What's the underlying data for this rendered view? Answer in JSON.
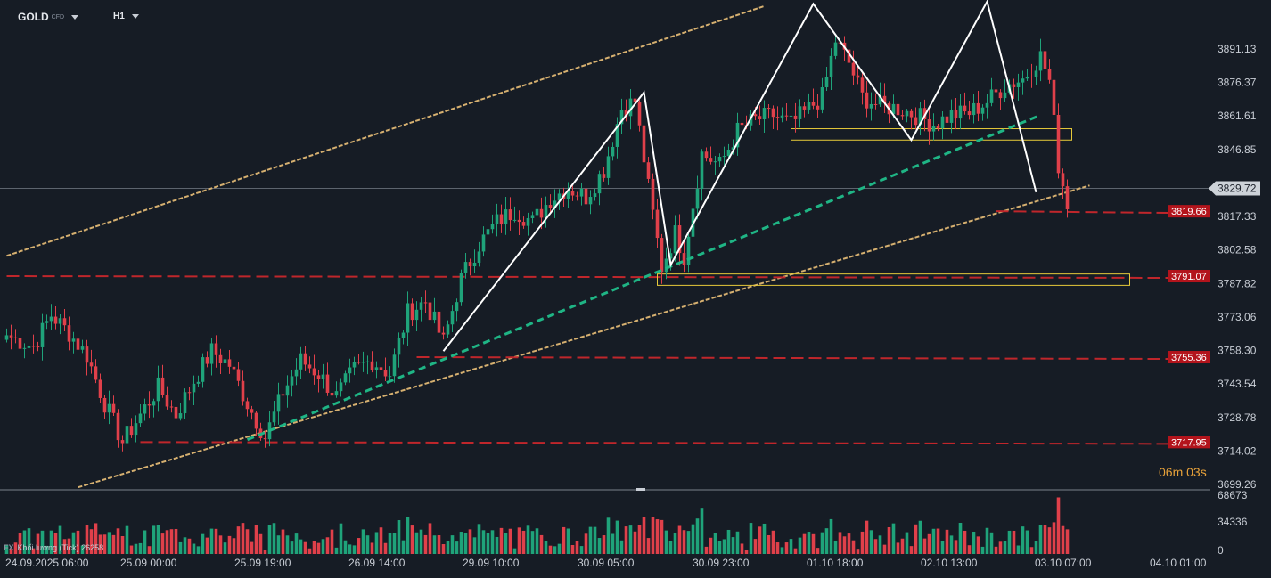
{
  "header": {
    "symbol": "GOLD",
    "symbol_sub": "CFD",
    "timeframe": "H1"
  },
  "countdown": "06m 03s",
  "volume_label": "Khối lượng (Tick) 26258",
  "icons": {
    "symbol_menu": "chevron-down-icon",
    "timeframe_menu": "chevron-down-icon",
    "logo": "fx-logo-icon"
  },
  "colors": {
    "background": "#161c25",
    "bull": "#1fa37a",
    "bear": "#e0404a",
    "channel": "#d6b070",
    "trend": "#1fb585",
    "level": "#c0262b",
    "pattern": "#ffffff",
    "zone": "#e6c93a",
    "current_price_bg": "#cdd2d8",
    "countdown": "#e8a23a"
  },
  "chart_data": {
    "type": "candlestick",
    "symbol": "GOLD",
    "interval": "H1",
    "ylim": [
      3695,
      3910
    ],
    "volume_ylim": [
      0,
      68673
    ],
    "price_ticks": [
      "3891.13",
      "3876.37",
      "3861.61",
      "3846.85",
      "3817.33",
      "3802.58",
      "3787.82",
      "3773.06",
      "3758.30",
      "3743.54",
      "3728.78",
      "3714.02",
      "3699.26"
    ],
    "volume_ticks": [
      "68673",
      "34336",
      "0"
    ],
    "x_labels": [
      "24.09.2025  06:00",
      "25.09  00:00",
      "25.09  19:00",
      "26.09  14:00",
      "29.09  10:00",
      "30.09  05:00",
      "30.09  23:00",
      "01.10  18:00",
      "02.10  13:00",
      "03.10  07:00",
      "04.10  01:00"
    ],
    "current_price": "3829.72",
    "level_labels": [
      "3819.66",
      "3791.07",
      "3755.36",
      "3717.95"
    ],
    "anchors": [
      [
        0,
        3765
      ],
      [
        6,
        3760
      ],
      [
        10,
        3774
      ],
      [
        14,
        3766
      ],
      [
        18,
        3756
      ],
      [
        22,
        3735
      ],
      [
        26,
        3718
      ],
      [
        30,
        3730
      ],
      [
        34,
        3742
      ],
      [
        38,
        3730
      ],
      [
        42,
        3745
      ],
      [
        46,
        3758
      ],
      [
        50,
        3752
      ],
      [
        54,
        3735
      ],
      [
        58,
        3720
      ],
      [
        62,
        3740
      ],
      [
        66,
        3754
      ],
      [
        70,
        3748
      ],
      [
        74,
        3738
      ],
      [
        78,
        3750
      ],
      [
        82,
        3754
      ],
      [
        86,
        3748
      ],
      [
        90,
        3775
      ],
      [
        94,
        3780
      ],
      [
        98,
        3762
      ],
      [
        102,
        3790
      ],
      [
        106,
        3805
      ],
      [
        110,
        3815
      ],
      [
        114,
        3820
      ],
      [
        118,
        3815
      ],
      [
        122,
        3825
      ],
      [
        126,
        3830
      ],
      [
        130,
        3826
      ],
      [
        134,
        3838
      ],
      [
        138,
        3865
      ],
      [
        141,
        3868
      ],
      [
        144,
        3830
      ],
      [
        147,
        3795
      ],
      [
        150,
        3810
      ],
      [
        152,
        3800
      ],
      [
        156,
        3845
      ],
      [
        160,
        3840
      ],
      [
        164,
        3855
      ],
      [
        168,
        3860
      ],
      [
        172,
        3862
      ],
      [
        176,
        3858
      ],
      [
        180,
        3865
      ],
      [
        183,
        3870
      ],
      [
        186,
        3895
      ],
      [
        189,
        3885
      ],
      [
        192,
        3870
      ],
      [
        196,
        3866
      ],
      [
        200,
        3865
      ],
      [
        204,
        3862
      ],
      [
        208,
        3858
      ],
      [
        212,
        3862
      ],
      [
        216,
        3863
      ],
      [
        220,
        3868
      ],
      [
        224,
        3875
      ],
      [
        228,
        3878
      ],
      [
        232,
        3888
      ],
      [
        234,
        3877
      ],
      [
        236,
        3840
      ],
      [
        238,
        3823
      ]
    ],
    "channel_upper": [
      [
        0,
        3800
      ],
      [
        170,
        3910
      ]
    ],
    "channel_lower": [
      [
        16,
        3698
      ],
      [
        243,
        3831
      ]
    ],
    "trendline": [
      [
        54,
        3719
      ],
      [
        232,
        3862
      ]
    ],
    "horizontal_levels": [
      {
        "label": "3819.66",
        "x": [
          222,
          263
        ],
        "y": 3819.66
      },
      {
        "label": "3791.07",
        "x": [
          0,
          263
        ],
        "y": 3791.07
      },
      {
        "label": "3755.36",
        "x": [
          92,
          263
        ],
        "y": 3755.36
      },
      {
        "label": "3717.95",
        "x": [
          30,
          263
        ],
        "y": 3717.95
      }
    ],
    "zones": [
      {
        "x": [
          146,
          252
        ],
        "y": [
          3787,
          3792
        ]
      },
      {
        "x": [
          176,
          239
        ],
        "y": [
          3851,
          3856
        ]
      }
    ],
    "pattern_path": [
      [
        98,
        3758
      ],
      [
        143,
        3872
      ],
      [
        149,
        3796
      ],
      [
        181,
        3911
      ],
      [
        203,
        3851
      ],
      [
        220,
        3912
      ],
      [
        231,
        3828
      ]
    ],
    "grid": false,
    "legend": "none"
  }
}
